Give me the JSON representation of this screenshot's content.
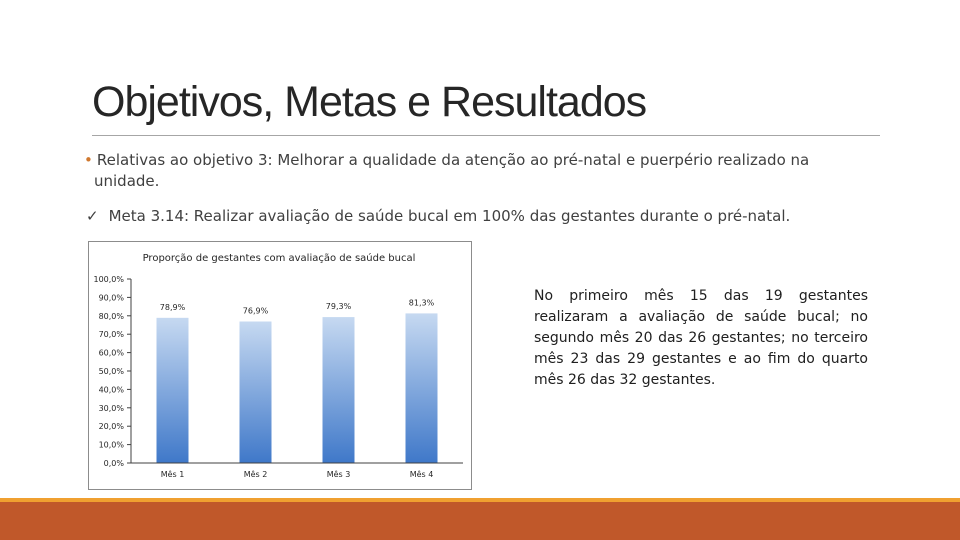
{
  "slide": {
    "title": "Objetivos, Metas e Resultados",
    "bullet_mark": "•",
    "bullet_text": "Relativas ao objetivo 3: Melhorar a qualidade da atenção ao pré-natal  e puerpério realizado na",
    "bullet_text_cont": "unidade.",
    "check_mark": "✓",
    "check_text": "Meta 3.14: Realizar avaliação de saúde bucal em 100% das gestantes durante o pré-natal.",
    "note_text": "No primeiro mês 15 das 19 gestantes realizaram a avaliação de saúde bucal; no segundo mês 20 das 26 gestantes; no terceiro mês 23 das 29 gestantes e ao fim do quarto mês 26 das 32 gestantes."
  },
  "colors": {
    "bar_top": "#c6d9f1",
    "bar_bottom": "#3f78c9",
    "accent_band": "#c0582a",
    "accent_thin": "#f0a030"
  },
  "chart_data": {
    "type": "bar",
    "title": "Proporção de gestantes com avaliação de saúde bucal",
    "categories": [
      "Mês 1",
      "Mês 2",
      "Mês 3",
      "Mês 4"
    ],
    "values": [
      78.9,
      76.9,
      79.3,
      81.3
    ],
    "data_labels": [
      "78,9%",
      "76,9%",
      "79,3%",
      "81,3%"
    ],
    "ylim": [
      0,
      100
    ],
    "yticks": [
      "0,0%",
      "10,0%",
      "20,0%",
      "30,0%",
      "40,0%",
      "50,0%",
      "60,0%",
      "70,0%",
      "80,0%",
      "90,0%",
      "100,0%"
    ],
    "grid": false,
    "legend": "none"
  }
}
